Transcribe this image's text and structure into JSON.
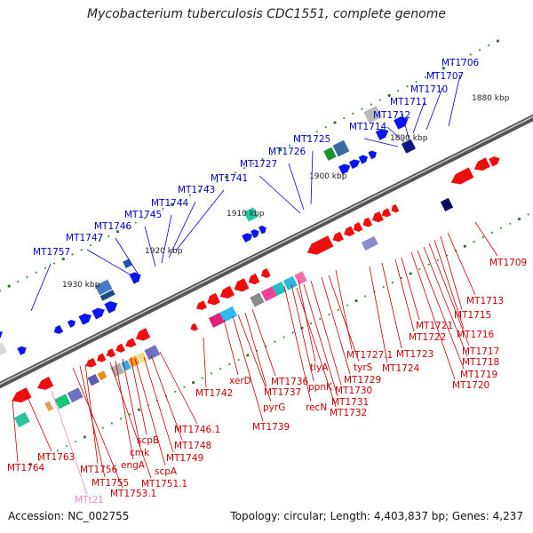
{
  "title": "Mycobacterium tuberculosis CDC1551, complete genome",
  "footer": {
    "accession": "Accession: NC_002755",
    "summary": "Topology: circular; Length: 4,403,837 bp; Genes: 4,237"
  },
  "colors": {
    "upper_label": "#0000cc",
    "lower_label": "#cc0000",
    "trna_label": "#ee88bb"
  },
  "scale_labels": [
    "1880 kbp",
    "1890 kbp",
    "1900 kbp",
    "1910 kbp",
    "1920 kbp",
    "1930 kbp"
  ],
  "upper_genes": [
    "MT1706",
    "MT1707",
    "MT1710",
    "MT1711",
    "MT1712",
    "MT1714",
    "MT1725",
    "MT1726",
    "MT1727",
    "MT1741",
    "MT1743",
    "MT1744",
    "MT1745",
    "MT1746",
    "MT1747",
    "MT1757"
  ],
  "lower_genes": [
    "MT1709",
    "MT1713",
    "MT1715",
    "MT1716",
    "MT1717",
    "MT1718",
    "MT1719",
    "MT1720",
    "MT1721",
    "MT1722",
    "MT1723",
    "MT1724",
    "MT1727.1",
    "tyrS",
    "MT1729",
    "tlyA",
    "MT1730",
    "ppnK",
    "MT1731",
    "recN",
    "MT1732",
    "MT1736",
    "MT1737",
    "xerD",
    "pyrG",
    "MT1739",
    "MT1742",
    "MT1746.1",
    "MT1748",
    "MT1749",
    "scpB",
    "cmk",
    "scpA",
    "engA",
    "MT1751.1",
    "MT1756",
    "MT1755",
    "MT1753.1",
    "MT1763",
    "MT1764",
    "MTt21"
  ]
}
